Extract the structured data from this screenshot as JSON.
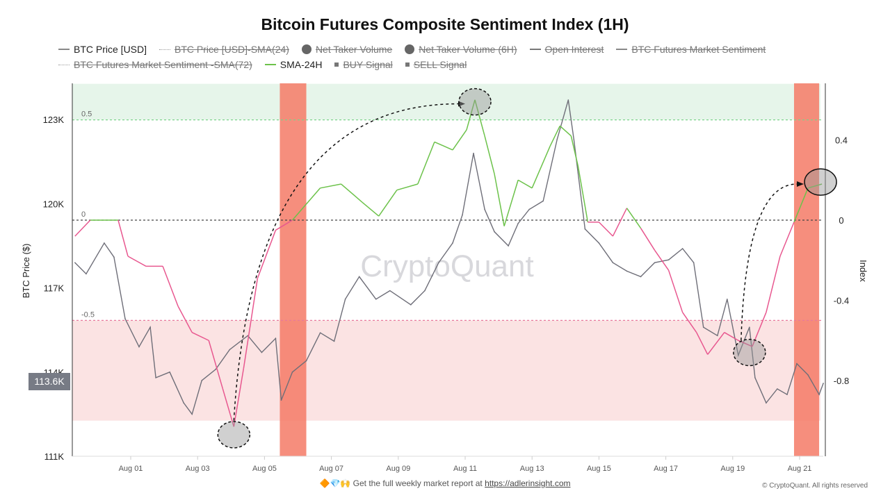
{
  "chart_data": {
    "type": "line",
    "title": "Bitcoin Futures Composite Sentiment Index (1H)",
    "ylabel_left": "BTC Price ($)",
    "ylabel_right": "Index",
    "ylim_left": [
      111,
      124.3
    ],
    "ylim_right": [
      -1.18,
      0.68
    ],
    "yticks_left": [
      "111K",
      "114K",
      "117K",
      "120K",
      "123K"
    ],
    "ytick_values_left": [
      111,
      114,
      117,
      120,
      123
    ],
    "yticks_right": [
      "0.4",
      "0",
      "-0.4",
      "-0.8"
    ],
    "ytick_values_right": [
      0.4,
      0,
      -0.4,
      -0.8
    ],
    "xticks": [
      "Aug 01",
      "Aug 03",
      "Aug 05",
      "Aug 07",
      "Aug 09",
      "Aug 11",
      "Aug 13",
      "Aug 15",
      "Aug 17",
      "Aug 19",
      "Aug 21"
    ],
    "xlim": [
      "Jul 30 06:00",
      "Aug 21 17:00"
    ],
    "current_price_label": "113.6K",
    "grid": false,
    "legend_placement": "top",
    "colors": {
      "price": "#6e6e78",
      "sentiment_pos": "#6cc24a",
      "sentiment_neg": "#e8578f",
      "sell_band": "#f47a66",
      "bull_zone": "#e6f5ea",
      "bear_zone": "#fbe3e3",
      "threshold_pos": "#7bd38a",
      "threshold_neg": "#e8789b"
    },
    "thresholds": [
      {
        "value": 0.5,
        "label": "0.5"
      },
      {
        "value": 0,
        "label": "0"
      },
      {
        "value": -0.5,
        "label": "-0.5"
      }
    ],
    "zones": [
      {
        "from": 0.5,
        "to": 0.68,
        "kind": "bull"
      },
      {
        "from": -1.0,
        "to": -0.5,
        "kind": "bear"
      }
    ],
    "highlight_bands": [
      {
        "start": "Aug 05 11:00",
        "end": "Aug 06 06:00"
      },
      {
        "start": "Aug 20 20:00",
        "end": "Aug 21 14:00"
      }
    ],
    "series": [
      {
        "name": "BTC Price [USD]",
        "axis": "left",
        "unit": "K USD",
        "points": [
          [
            "Jul 30 08:00",
            117.9
          ],
          [
            "Jul 30 16:00",
            117.5
          ],
          [
            "Jul 31 05:00",
            118.6
          ],
          [
            "Jul 31 12:00",
            118.1
          ],
          [
            "Jul 31 20:00",
            115.9
          ],
          [
            "Aug 01 06:00",
            114.9
          ],
          [
            "Aug 01 14:00",
            115.6
          ],
          [
            "Aug 01 18:00",
            113.8
          ],
          [
            "Aug 02 04:00",
            114.0
          ],
          [
            "Aug 02 14:00",
            112.9
          ],
          [
            "Aug 02 20:00",
            112.5
          ],
          [
            "Aug 03 03:00",
            113.7
          ],
          [
            "Aug 03 13:00",
            114.1
          ],
          [
            "Aug 03 23:00",
            114.8
          ],
          [
            "Aug 04 12:00",
            115.3
          ],
          [
            "Aug 04 22:00",
            114.7
          ],
          [
            "Aug 05 08:00",
            115.2
          ],
          [
            "Aug 05 12:00",
            113.0
          ],
          [
            "Aug 05 20:00",
            114.0
          ],
          [
            "Aug 06 06:00",
            114.4
          ],
          [
            "Aug 06 16:00",
            115.4
          ],
          [
            "Aug 07 02:00",
            115.1
          ],
          [
            "Aug 07 10:00",
            116.6
          ],
          [
            "Aug 07 20:00",
            117.4
          ],
          [
            "Aug 08 08:00",
            116.6
          ],
          [
            "Aug 08 18:00",
            116.9
          ],
          [
            "Aug 09 09:00",
            116.4
          ],
          [
            "Aug 09 19:00",
            116.9
          ],
          [
            "Aug 10 05:00",
            117.9
          ],
          [
            "Aug 10 15:00",
            118.6
          ],
          [
            "Aug 10 22:00",
            119.6
          ],
          [
            "Aug 11 06:00",
            121.8
          ],
          [
            "Aug 11 14:00",
            119.8
          ],
          [
            "Aug 11 21:00",
            119.0
          ],
          [
            "Aug 12 07:00",
            118.5
          ],
          [
            "Aug 12 14:00",
            119.3
          ],
          [
            "Aug 12 22:00",
            119.8
          ],
          [
            "Aug 13 08:00",
            120.1
          ],
          [
            "Aug 13 18:00",
            122.3
          ],
          [
            "Aug 14 02:00",
            123.7
          ],
          [
            "Aug 14 06:00",
            122.3
          ],
          [
            "Aug 14 14:00",
            119.1
          ],
          [
            "Aug 15 00:00",
            118.6
          ],
          [
            "Aug 15 10:00",
            117.9
          ],
          [
            "Aug 15 20:00",
            117.6
          ],
          [
            "Aug 16 06:00",
            117.4
          ],
          [
            "Aug 16 16:00",
            117.9
          ],
          [
            "Aug 17 02:00",
            118.0
          ],
          [
            "Aug 17 12:00",
            118.4
          ],
          [
            "Aug 17 20:00",
            117.9
          ],
          [
            "Aug 18 03:00",
            115.6
          ],
          [
            "Aug 18 13:00",
            115.3
          ],
          [
            "Aug 18 20:00",
            116.6
          ],
          [
            "Aug 19 04:00",
            114.6
          ],
          [
            "Aug 19 12:00",
            115.6
          ],
          [
            "Aug 19 16:00",
            113.8
          ],
          [
            "Aug 20 00:00",
            112.9
          ],
          [
            "Aug 20 08:00",
            113.4
          ],
          [
            "Aug 20 15:00",
            113.2
          ],
          [
            "Aug 20 22:00",
            114.3
          ],
          [
            "Aug 21 06:00",
            113.9
          ],
          [
            "Aug 21 14:00",
            113.2
          ],
          [
            "Aug 21 17:00",
            113.6
          ]
        ]
      },
      {
        "name": "SMA-24H",
        "axis": "right",
        "points": [
          [
            "Jul 30 08:00",
            -0.08
          ],
          [
            "Jul 30 19:00",
            0.0
          ],
          [
            "Jul 31 15:00",
            0.0
          ],
          [
            "Jul 31 22:00",
            -0.18
          ],
          [
            "Aug 01 11:00",
            -0.23
          ],
          [
            "Aug 01 23:00",
            -0.23
          ],
          [
            "Aug 02 10:00",
            -0.43
          ],
          [
            "Aug 02 20:00",
            -0.56
          ],
          [
            "Aug 03 08:00",
            -0.6
          ],
          [
            "Aug 03 18:00",
            -0.84
          ],
          [
            "Aug 04 02:00",
            -1.03
          ],
          [
            "Aug 04 09:00",
            -0.74
          ],
          [
            "Aug 04 19:00",
            -0.29
          ],
          [
            "Aug 05 08:00",
            -0.05
          ],
          [
            "Aug 05 20:00",
            0.0
          ],
          [
            "Aug 06 06:00",
            0.08
          ],
          [
            "Aug 06 16:00",
            0.16
          ],
          [
            "Aug 07 07:00",
            0.18
          ],
          [
            "Aug 07 22:00",
            0.09
          ],
          [
            "Aug 08 10:00",
            0.02
          ],
          [
            "Aug 08 23:00",
            0.15
          ],
          [
            "Aug 09 14:00",
            0.18
          ],
          [
            "Aug 10 02:00",
            0.39
          ],
          [
            "Aug 10 15:00",
            0.35
          ],
          [
            "Aug 11 01:00",
            0.45
          ],
          [
            "Aug 11 07:00",
            0.6
          ],
          [
            "Aug 11 14:00",
            0.42
          ],
          [
            "Aug 11 21:00",
            0.23
          ],
          [
            "Aug 12 04:00",
            -0.03
          ],
          [
            "Aug 12 14:00",
            0.2
          ],
          [
            "Aug 13 00:00",
            0.16
          ],
          [
            "Aug 13 13:00",
            0.37
          ],
          [
            "Aug 13 20:00",
            0.47
          ],
          [
            "Aug 14 04:00",
            0.42
          ],
          [
            "Aug 14 09:00",
            0.27
          ],
          [
            "Aug 14 16:00",
            -0.01
          ],
          [
            "Aug 15 00:00",
            -0.01
          ],
          [
            "Aug 15 10:00",
            -0.08
          ],
          [
            "Aug 15 20:00",
            0.06
          ],
          [
            "Aug 16 06:00",
            -0.04
          ],
          [
            "Aug 16 16:00",
            -0.15
          ],
          [
            "Aug 17 02:00",
            -0.25
          ],
          [
            "Aug 17 12:00",
            -0.46
          ],
          [
            "Aug 17 22:00",
            -0.56
          ],
          [
            "Aug 18 06:00",
            -0.67
          ],
          [
            "Aug 18 18:00",
            -0.56
          ],
          [
            "Aug 19 04:00",
            -0.6
          ],
          [
            "Aug 19 14:00",
            -0.63
          ],
          [
            "Aug 20 00:00",
            -0.46
          ],
          [
            "Aug 20 10:00",
            -0.18
          ],
          [
            "Aug 20 20:00",
            -0.01
          ],
          [
            "Aug 21 06:00",
            0.16
          ],
          [
            "Aug 21 16:00",
            0.18
          ]
        ]
      }
    ],
    "annotations": {
      "circles": [
        [
          "Aug 04 02:00",
          -1.07,
          "dashed"
        ],
        [
          "Aug 11 07:00",
          0.59,
          "dashed"
        ],
        [
          "Aug 19 12:00",
          -0.66,
          "dashed"
        ],
        [
          "Aug 21 15:00",
          0.19,
          "solid"
        ]
      ],
      "arrows": [
        [
          "Aug 04 02:00",
          -1.0,
          "Aug 11 00:00",
          0.58
        ],
        [
          "Aug 19 06:00",
          -0.6,
          "Aug 21 03:00",
          0.18
        ]
      ]
    }
  },
  "legend": [
    {
      "label": "BTC Price [USD]",
      "marker": "line",
      "active": true
    },
    {
      "label": "BTC Price [USD]-SMA(24)",
      "marker": "dotted",
      "active": false
    },
    {
      "label": "Net Taker Volume",
      "marker": "dot",
      "active": false
    },
    {
      "label": "Net Taker Volume (6H)",
      "marker": "dot",
      "active": false
    },
    {
      "label": "Open Interest",
      "marker": "line-dot",
      "active": false
    },
    {
      "label": "BTC Futures Market Sentiment",
      "marker": "line",
      "active": false
    },
    {
      "label": "BTC Futures Market Sentiment -SMA(72)",
      "marker": "dotted",
      "active": false
    },
    {
      "label": "SMA-24H",
      "marker": "line-green",
      "active": true
    },
    {
      "label": "BUY Signal",
      "marker": "square",
      "active": false
    },
    {
      "label": "SELL Signal",
      "marker": "square",
      "active": false
    }
  ],
  "watermark": "CryptoQuant",
  "footer": {
    "emoji": "🔶💎🙌",
    "text": "Get the full weekly market report at",
    "link": "https://adlerinsight.com"
  },
  "copyright": "© CryptoQuant. All rights reserved"
}
